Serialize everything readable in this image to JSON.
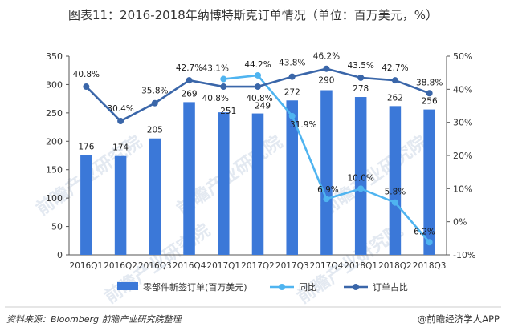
{
  "chart_data": {
    "type": "bar",
    "title": "图表11：2016-2018年纳博特斯克订单情况（单位：百万美元，%）",
    "categories": [
      "2016Q1",
      "2016Q2",
      "2016Q3",
      "2016Q4",
      "2017Q1",
      "2017Q2",
      "2017Q3",
      "2017Q4",
      "2018Q1",
      "2018Q2",
      "2018Q3"
    ],
    "series": [
      {
        "name": "零部件新签订单(百万美元)",
        "kind": "bar",
        "axis": "left",
        "color": "#3b78d8",
        "values": [
          176,
          174,
          205,
          269,
          251,
          249,
          272,
          290,
          278,
          262,
          256
        ],
        "labels": [
          "176",
          "174",
          "205",
          "269",
          "251",
          "249",
          "272",
          "290",
          "278",
          "262",
          "256"
        ]
      },
      {
        "name": "同比",
        "kind": "line",
        "axis": "right",
        "color": "#4fb4f0",
        "values": [
          null,
          null,
          null,
          null,
          43.1,
          44.2,
          31.9,
          6.9,
          10.0,
          5.8,
          -6.2
        ],
        "labels": [
          null,
          null,
          null,
          null,
          "43.1%",
          "44.2%",
          "31.9%",
          "6.9%",
          "10.0%",
          "5.8%",
          "-6.2%"
        ]
      },
      {
        "name": "订单占比",
        "kind": "line",
        "axis": "right",
        "color": "#3a66a9",
        "values": [
          40.8,
          30.4,
          35.8,
          42.7,
          40.8,
          40.8,
          43.8,
          46.2,
          43.5,
          42.7,
          38.8
        ],
        "labels": [
          "40.8%",
          "30.4%",
          "35.8%",
          "42.7%",
          "40.8%",
          "40.8%",
          "43.8%",
          "46.2%",
          "43.5%",
          "42.7%",
          "38.8%"
        ]
      }
    ],
    "y_left": {
      "min": 0,
      "max": 350,
      "ticks": [
        "0",
        "50",
        "100",
        "150",
        "200",
        "250",
        "300",
        "350"
      ]
    },
    "y_right": {
      "min": -10,
      "max": 50,
      "ticks": [
        "-10%",
        "0%",
        "10%",
        "20%",
        "30%",
        "40%",
        "50%"
      ]
    },
    "legend_position": "bottom",
    "grid": false
  },
  "footer": {
    "source": "资料来源：Bloomberg  前瞻产业研究院整理",
    "brand": "@前瞻经济学人APP"
  },
  "watermark": {
    "text": "前瞻产业研究院"
  }
}
